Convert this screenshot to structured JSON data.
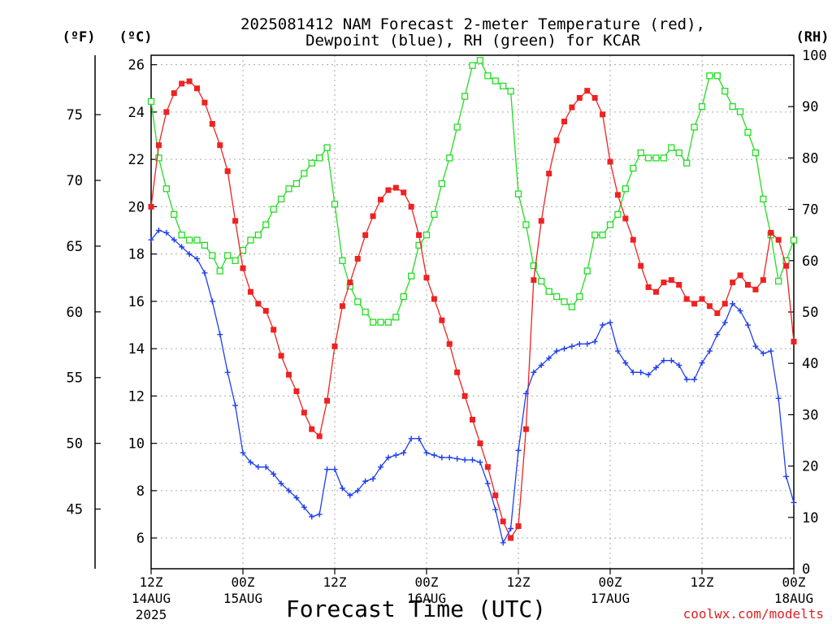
{
  "chart_data": {
    "type": "line",
    "title_line1": "2025081412 NAM Forecast 2-meter Temperature (red),",
    "title_line2": "Dewpoint (blue), RH (green) for KCAR",
    "xlabel": "Forecast Time (UTC)",
    "credit": "coolwx.com/modelts",
    "left_unit_f": "(ºF)",
    "left_unit_c": "(ºC)",
    "right_unit": "(RH)",
    "x_range_hours": [
      0,
      84
    ],
    "celsius_axis": {
      "range": [
        4.7,
        26.4
      ],
      "ticks": [
        "6",
        "8",
        "10",
        "12",
        "14",
        "16",
        "18",
        "20",
        "22",
        "24",
        "26"
      ]
    },
    "fahrenheit_axis": {
      "ticks": [
        "45",
        "50",
        "55",
        "60",
        "65",
        "70",
        "75"
      ]
    },
    "rh_axis": {
      "range": [
        0,
        100
      ],
      "ticks": [
        "0",
        "10",
        "20",
        "30",
        "40",
        "50",
        "60",
        "70",
        "80",
        "90",
        "100"
      ]
    },
    "x_ticks": [
      {
        "hour": 0,
        "line1": "12Z",
        "line2": "14AUG",
        "line3": "2025"
      },
      {
        "hour": 12,
        "line1": "00Z",
        "line2": "15AUG",
        "line3": ""
      },
      {
        "hour": 24,
        "line1": "12Z",
        "line2": "",
        "line3": ""
      },
      {
        "hour": 36,
        "line1": "00Z",
        "line2": "16AUG",
        "line3": ""
      },
      {
        "hour": 48,
        "line1": "12Z",
        "line2": "",
        "line3": ""
      },
      {
        "hour": 60,
        "line1": "00Z",
        "line2": "17AUG",
        "line3": ""
      },
      {
        "hour": 72,
        "line1": "12Z",
        "line2": "",
        "line3": ""
      },
      {
        "hour": 84,
        "line1": "00Z",
        "line2": "18AUG",
        "line3": ""
      }
    ],
    "grid": true,
    "colors": {
      "temperature": "#ee2222",
      "dewpoint": "#1f3fee",
      "rh": "#22dd22",
      "grid": "#aaaaaa",
      "credit": "#dd2222"
    },
    "series": [
      {
        "name": "Temperature",
        "unit": "C",
        "x": [
          0,
          1,
          2,
          3,
          4,
          5,
          6,
          7,
          8,
          9,
          10,
          11,
          12,
          13,
          14,
          15,
          16,
          17,
          18,
          19,
          20,
          21,
          22,
          23,
          24,
          25,
          26,
          27,
          28,
          29,
          30,
          31,
          32,
          33,
          34,
          35,
          36,
          37,
          38,
          39,
          40,
          41,
          42,
          43,
          44,
          45,
          46,
          47,
          48,
          49,
          50,
          51,
          52,
          53,
          54,
          55,
          56,
          57,
          58,
          59,
          60,
          61,
          62,
          63,
          64,
          65,
          66,
          67,
          68,
          69,
          70,
          71,
          72,
          73,
          74,
          75,
          76,
          77,
          78,
          79,
          80,
          81,
          82,
          83,
          84
        ],
        "values": [
          20.0,
          22.6,
          24.0,
          24.8,
          25.2,
          25.3,
          25.0,
          24.4,
          23.5,
          22.6,
          21.5,
          19.4,
          17.4,
          16.4,
          15.9,
          15.6,
          14.8,
          13.7,
          12.9,
          12.2,
          11.3,
          10.6,
          10.3,
          11.8,
          14.1,
          15.8,
          16.8,
          17.8,
          18.8,
          19.6,
          20.3,
          20.7,
          20.8,
          20.6,
          20.0,
          18.8,
          17.0,
          16.1,
          15.2,
          14.2,
          13.0,
          12.0,
          11.0,
          10.0,
          9.0,
          7.8,
          6.7,
          6.0,
          6.5,
          10.6,
          16.9,
          19.4,
          21.4,
          22.8,
          23.6,
          24.2,
          24.6,
          24.9,
          24.6,
          23.9,
          21.9,
          20.5,
          19.5,
          18.6,
          17.5,
          16.6,
          16.4,
          16.8,
          16.9,
          16.7,
          16.1,
          15.9,
          16.1,
          15.8,
          15.5,
          15.9,
          16.8,
          17.1,
          16.7,
          16.5,
          16.9,
          18.9,
          18.6,
          17.5,
          14.3
        ]
      },
      {
        "name": "Dewpoint",
        "unit": "C",
        "x": [
          0,
          1,
          2,
          3,
          4,
          5,
          6,
          7,
          8,
          9,
          10,
          11,
          12,
          13,
          14,
          15,
          16,
          17,
          18,
          19,
          20,
          21,
          22,
          23,
          24,
          25,
          26,
          27,
          28,
          29,
          30,
          31,
          32,
          33,
          34,
          35,
          36,
          37,
          38,
          39,
          40,
          41,
          42,
          43,
          44,
          45,
          46,
          47,
          48,
          49,
          50,
          51,
          52,
          53,
          54,
          55,
          56,
          57,
          58,
          59,
          60,
          61,
          62,
          63,
          64,
          65,
          66,
          67,
          68,
          69,
          70,
          71,
          72,
          73,
          74,
          75,
          76,
          77,
          78,
          79,
          80,
          81,
          82,
          83,
          84
        ],
        "values": [
          18.6,
          19.0,
          18.9,
          18.6,
          18.3,
          18.0,
          17.8,
          17.2,
          16.0,
          14.6,
          13.0,
          11.6,
          9.6,
          9.2,
          9.0,
          9.0,
          8.7,
          8.3,
          8.0,
          7.7,
          7.3,
          6.9,
          7.0,
          8.9,
          8.9,
          8.1,
          7.8,
          8.0,
          8.4,
          8.5,
          9.0,
          9.4,
          9.5,
          9.6,
          10.2,
          10.2,
          9.6,
          9.5,
          9.4,
          9.4,
          9.35,
          9.3,
          9.3,
          9.2,
          8.3,
          7.2,
          5.8,
          6.4,
          9.7,
          12.1,
          13.0,
          13.3,
          13.6,
          13.9,
          14.0,
          14.1,
          14.2,
          14.2,
          14.3,
          15.0,
          15.1,
          13.9,
          13.4,
          13.0,
          13.0,
          12.9,
          13.2,
          13.5,
          13.5,
          13.3,
          12.7,
          12.7,
          13.4,
          13.9,
          14.6,
          15.1,
          15.9,
          15.6,
          15.0,
          14.1,
          13.8,
          13.9,
          11.9,
          8.6,
          7.5
        ]
      },
      {
        "name": "RH",
        "unit": "%",
        "x": [
          0,
          1,
          2,
          3,
          4,
          5,
          6,
          7,
          8,
          9,
          10,
          11,
          12,
          13,
          14,
          15,
          16,
          17,
          18,
          19,
          20,
          21,
          22,
          23,
          24,
          25,
          26,
          27,
          28,
          29,
          30,
          31,
          32,
          33,
          34,
          35,
          36,
          37,
          38,
          39,
          40,
          41,
          42,
          43,
          44,
          45,
          46,
          47,
          48,
          49,
          50,
          51,
          52,
          53,
          54,
          55,
          56,
          57,
          58,
          59,
          60,
          61,
          62,
          63,
          64,
          65,
          66,
          67,
          68,
          69,
          70,
          71,
          72,
          73,
          74,
          75,
          76,
          77,
          78,
          79,
          80,
          81,
          82,
          83,
          84
        ],
        "values": [
          91,
          80,
          74,
          69,
          65,
          64,
          64,
          63,
          61,
          58,
          61,
          60,
          62,
          64,
          65,
          67,
          70,
          72,
          74,
          75,
          77,
          79,
          80,
          82,
          71,
          60,
          55,
          52,
          50,
          48,
          48,
          48,
          49,
          53,
          57,
          63,
          65,
          69,
          75,
          80,
          86,
          92,
          98,
          99,
          96,
          95,
          94,
          93,
          73,
          67,
          59,
          56,
          54,
          53,
          52,
          51,
          53,
          58,
          65,
          65,
          67,
          69,
          74,
          78,
          81,
          80,
          80,
          80,
          82,
          81,
          79,
          86,
          90,
          96,
          96,
          93,
          90,
          89,
          85,
          81,
          72,
          65,
          56,
          60,
          64
        ]
      }
    ]
  }
}
